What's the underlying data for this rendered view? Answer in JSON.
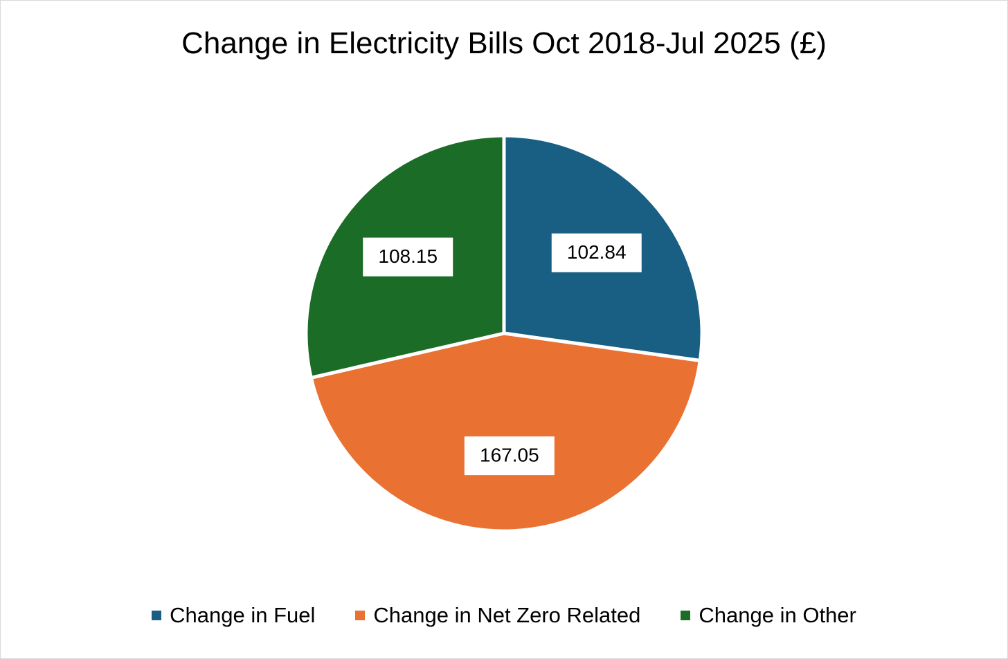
{
  "chart_data": {
    "type": "pie",
    "title": "Change in Electricity Bills Oct 2018-Jul 2025 (£)",
    "categories": [
      "Change in Fuel",
      "Change in Net Zero Related",
      "Change in Other"
    ],
    "values": [
      102.84,
      167.05,
      108.15
    ],
    "labels": [
      "102.84",
      "167.05",
      "108.15"
    ],
    "colors": [
      "#185F83",
      "#E97132",
      "#1B6C26"
    ],
    "start_angle_deg": 0,
    "direction": "clockwise",
    "legend_position": "bottom"
  }
}
